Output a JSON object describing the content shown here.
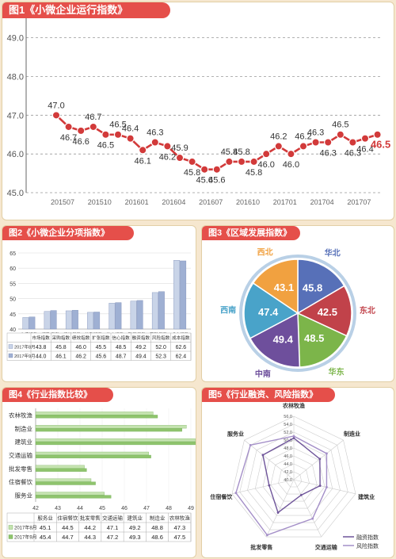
{
  "panels": {
    "p1_title": "图1《小微企业运行指数》",
    "p2_title": "图2《小微企业分项指数》",
    "p3_title": "图3《区域发展指数》",
    "p4_title": "图4《行业指数比较》",
    "p5_title": "图5《行业融资、风险指数》"
  },
  "chart_data": [
    {
      "type": "line",
      "title": "图1《小微企业运行指数》",
      "y_ticks": [
        "49.0",
        "48.0",
        "47.0",
        "46.0",
        "45.0"
      ],
      "ylim": [
        45,
        49.3
      ],
      "x_labels": [
        "201507",
        "201510",
        "201601",
        "201604",
        "201607",
        "201610",
        "201701",
        "201704",
        "201707"
      ],
      "values": [
        47.0,
        46.7,
        46.6,
        46.7,
        46.5,
        46.5,
        46.4,
        46.1,
        46.3,
        46.2,
        45.9,
        45.8,
        45.6,
        45.6,
        45.8,
        45.8,
        45.8,
        46.0,
        46.2,
        46.0,
        46.2,
        46.3,
        46.3,
        46.5,
        46.3,
        46.4,
        46.5
      ],
      "color": "#d23a3a"
    },
    {
      "type": "bar",
      "title": "图2《小微企业分项指数》",
      "y_ticks": [
        "65",
        "60",
        "55",
        "50",
        "45",
        "40"
      ],
      "ylim": [
        40,
        65
      ],
      "categories": [
        "市场指数",
        "采购指数",
        "绩效指数",
        "扩张指数",
        "信心指数",
        "融资指数",
        "风险指数",
        "成本指数"
      ],
      "series": [
        {
          "name": "2017年8月",
          "values": [
            43.8,
            45.8,
            46.0,
            45.5,
            48.5,
            49.2,
            52.0,
            62.6
          ],
          "color": "#c9d4e8"
        },
        {
          "name": "2017年9月",
          "values": [
            44.0,
            46.1,
            46.2,
            45.6,
            48.7,
            49.4,
            52.3,
            62.4
          ],
          "color": "#9fb0d3"
        }
      ]
    },
    {
      "type": "pie",
      "title": "图3《区域发展指数》",
      "slices": [
        {
          "label": "华北",
          "value": 45.8,
          "color": "#5770b8"
        },
        {
          "label": "东北",
          "value": 42.5,
          "color": "#c1424a"
        },
        {
          "label": "华东",
          "value": 48.5,
          "color": "#7cb54a"
        },
        {
          "label": "中南",
          "value": 49.4,
          "color": "#6e4f9c"
        },
        {
          "label": "西南",
          "value": 47.4,
          "color": "#49a3c9"
        },
        {
          "label": "西北",
          "value": 43.1,
          "color": "#f1a140"
        }
      ]
    },
    {
      "type": "bar",
      "title": "图4《行业指数比较》",
      "orientation": "horizontal",
      "categories": [
        "农林牧渔",
        "制造业",
        "建筑业",
        "交通运输",
        "批发零售",
        "住宿餐饮",
        "服务业"
      ],
      "x_ticks": [
        "42",
        "43",
        "44",
        "45",
        "46",
        "47",
        "48",
        "49"
      ],
      "xlim": [
        42,
        49
      ],
      "table_categories": [
        "服务业",
        "住宿餐饮",
        "批发零售",
        "交通运输",
        "建筑业",
        "制造业",
        "农林牧渔"
      ],
      "series": [
        {
          "name": "2017年8月",
          "values": [
            45.1,
            44.5,
            44.2,
            47.1,
            49.2,
            48.8,
            47.3
          ],
          "color": "#c5e3b0"
        },
        {
          "name": "2017年9月",
          "values": [
            45.4,
            44.7,
            44.3,
            47.2,
            49.3,
            48.6,
            47.5
          ],
          "color": "#8fc46d"
        }
      ]
    },
    {
      "type": "radar",
      "title": "图5《行业融资、风险指数》",
      "axes": [
        "农林牧渔",
        "制造业",
        "建筑业",
        "交通运输",
        "批发零售",
        "住宿餐饮",
        "服务业"
      ],
      "ticks": [
        "56.0",
        "54.0",
        "52.0",
        "50.0",
        "48.0",
        "46.0",
        "44.0",
        "42.0",
        "40.0"
      ],
      "range": [
        40,
        56
      ],
      "series": [
        {
          "name": "融资指数",
          "values": [
            50.5,
            48.4,
            46.8,
            44.3,
            49.2,
            46.4,
            50.0
          ],
          "color": "#6f559a"
        },
        {
          "name": "风险指数",
          "values": [
            51.0,
            50.6,
            48.5,
            50.9,
            55.5,
            55.0,
            54.0
          ],
          "color": "#a48fc8"
        }
      ]
    }
  ]
}
